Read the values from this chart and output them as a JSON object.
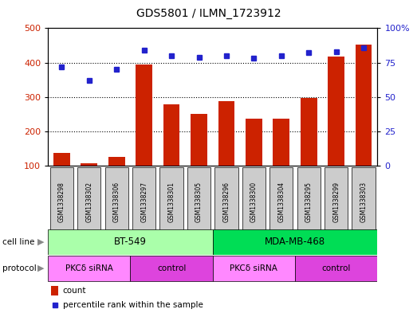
{
  "title": "GDS5801 / ILMN_1723912",
  "samples": [
    "GSM1338298",
    "GSM1338302",
    "GSM1338306",
    "GSM1338297",
    "GSM1338301",
    "GSM1338305",
    "GSM1338296",
    "GSM1338300",
    "GSM1338304",
    "GSM1338295",
    "GSM1338299",
    "GSM1338303"
  ],
  "counts": [
    138,
    108,
    126,
    395,
    278,
    252,
    288,
    238,
    238,
    298,
    418,
    452
  ],
  "percentile_right": [
    72,
    62,
    70,
    84,
    80,
    79,
    80,
    78,
    80,
    82,
    83,
    86
  ],
  "cell_line_groups": [
    {
      "label": "BT-549",
      "start": 0,
      "end": 6,
      "color": "#aaffaa"
    },
    {
      "label": "MDA-MB-468",
      "start": 6,
      "end": 12,
      "color": "#00dd55"
    }
  ],
  "protocol_groups": [
    {
      "label": "PKCδ siRNA",
      "start": 0,
      "end": 3,
      "color": "#ff88ff"
    },
    {
      "label": "control",
      "start": 3,
      "end": 6,
      "color": "#dd44dd"
    },
    {
      "label": "PKCδ siRNA",
      "start": 6,
      "end": 9,
      "color": "#ff88ff"
    },
    {
      "label": "control",
      "start": 9,
      "end": 12,
      "color": "#dd44dd"
    }
  ],
  "bar_color": "#cc2200",
  "dot_color": "#2222cc",
  "ylim_left": [
    100,
    500
  ],
  "ylim_right": [
    0,
    100
  ],
  "yticks_left": [
    100,
    200,
    300,
    400,
    500
  ],
  "yticks_right": [
    0,
    25,
    50,
    75,
    100
  ],
  "plot_bg": "#ffffff",
  "tick_bg": "#cccccc",
  "fig_bg": "#ffffff"
}
